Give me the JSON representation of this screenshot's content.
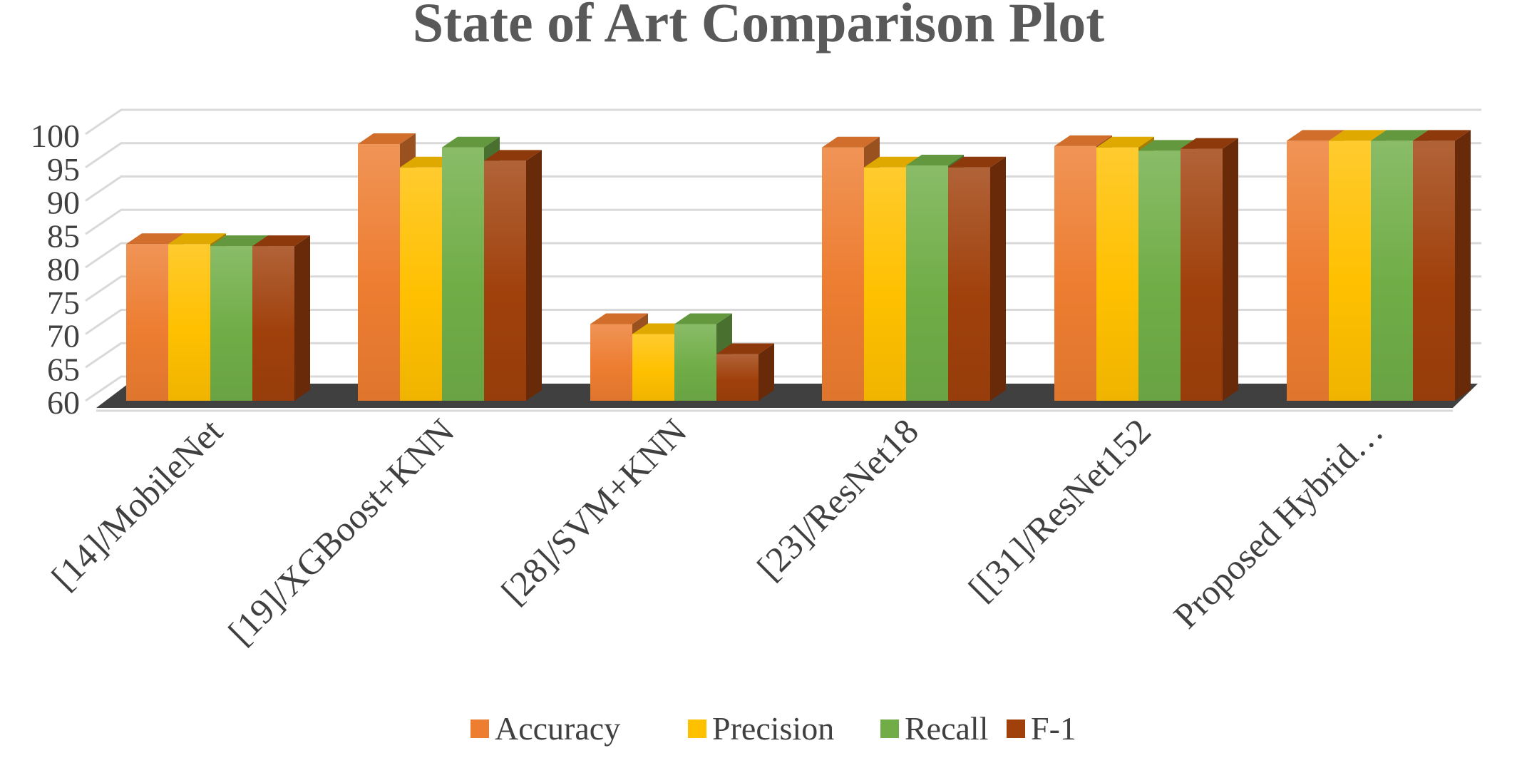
{
  "chart_data": {
    "type": "bar",
    "title": "State of Art Comparison Plot",
    "xlabel": "",
    "ylabel": "",
    "ylim": [
      60,
      100
    ],
    "yticks": [
      60,
      65,
      70,
      75,
      80,
      85,
      90,
      95,
      100
    ],
    "grid": true,
    "legend_position": "bottom",
    "categories": [
      "[14]/MobileNet",
      "[19]/XGBoost+KNN",
      "[28]/SVM+KNN",
      "[23]/ResNet18",
      "[[31]/ResNet152",
      "Proposed Hybrid…"
    ],
    "series": [
      {
        "name": "Accuracy",
        "color": "#ED7D31",
        "values": [
          83.5,
          98.5,
          71.5,
          98.0,
          98.2,
          99.0
        ]
      },
      {
        "name": "Precision",
        "color": "#FFC000",
        "values": [
          83.5,
          95.0,
          70.0,
          95.0,
          98.0,
          99.0
        ]
      },
      {
        "name": "Recall",
        "color": "#70AD47",
        "values": [
          83.2,
          98.0,
          71.5,
          95.3,
          97.5,
          99.0
        ]
      },
      {
        "name": "F-1",
        "color": "#A0410C",
        "values": [
          83.2,
          96.0,
          67.0,
          95.0,
          97.8,
          99.0
        ]
      }
    ]
  }
}
